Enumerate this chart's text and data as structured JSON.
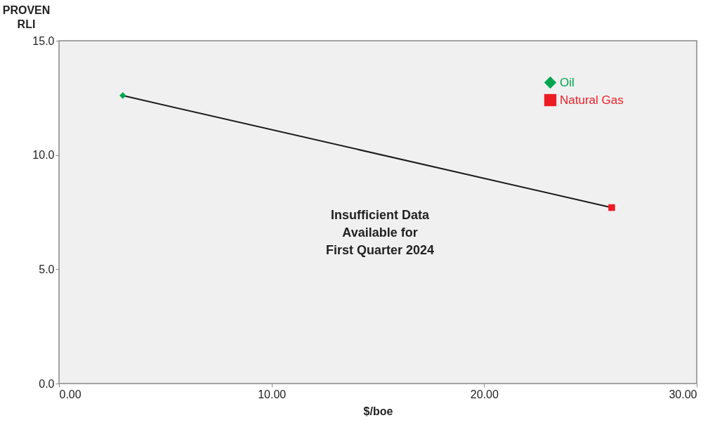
{
  "chart_data": {
    "type": "scatter",
    "xlabel": "$/boe",
    "ylabel": "PROVEN\nRLI",
    "xlim": [
      0,
      30
    ],
    "xticks": [
      {
        "value": 0,
        "label": "0.00"
      },
      {
        "value": 10,
        "label": "10.00"
      },
      {
        "value": 20,
        "label": "20.00"
      },
      {
        "value": 30,
        "label": "30.00"
      }
    ],
    "ylim": [
      0,
      15
    ],
    "yticks": [
      {
        "value": 0,
        "label": "0.0"
      },
      {
        "value": 5,
        "label": "5.0"
      },
      {
        "value": 10,
        "label": "10.0"
      },
      {
        "value": 15,
        "label": "15.0"
      }
    ],
    "x": [
      3.0,
      26.0
    ],
    "grid": false,
    "legend": "top right",
    "annotations": [
      "Insufficient Data\nAvailable for\nFirst Quarter 2024"
    ],
    "series": [
      {
        "name": "Oil",
        "color": "#00a651",
        "marker": "diamond",
        "values": [
          12.6,
          null
        ]
      },
      {
        "name": "Natural Gas",
        "color": "#ed1c24",
        "marker": "square",
        "values": [
          null,
          7.7
        ]
      },
      {
        "type": "line",
        "color": "#1a1a1a",
        "marker": "none",
        "values": [
          12.6,
          7.7
        ]
      }
    ]
  }
}
